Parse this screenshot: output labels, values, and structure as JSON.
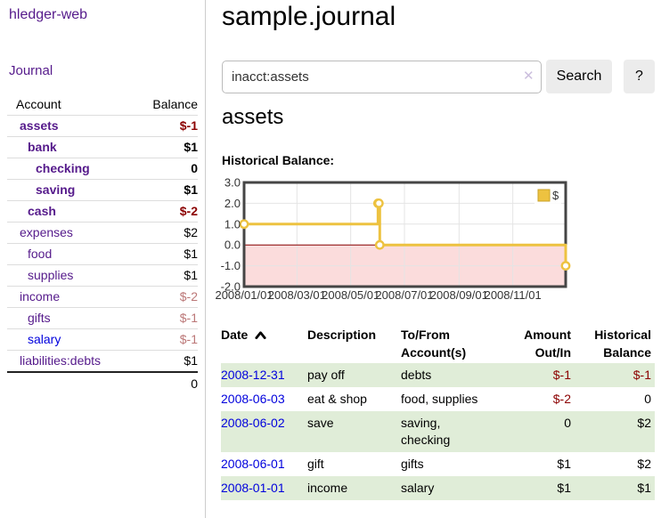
{
  "app": {
    "brand": "hledger-web"
  },
  "nav": {
    "journal": "Journal"
  },
  "sidebar": {
    "header": {
      "account": "Account",
      "balance": "Balance"
    },
    "accounts": [
      {
        "name": "assets",
        "indent": 1,
        "bold": true,
        "link_color": "purple",
        "balance": "$-1",
        "balance_style": "neg"
      },
      {
        "name": "bank",
        "indent": 2,
        "bold": true,
        "link_color": "purple",
        "balance": "$1",
        "balance_style": "pos"
      },
      {
        "name": "checking",
        "indent": 3,
        "bold": true,
        "link_color": "purple",
        "balance": "0",
        "balance_style": "pos"
      },
      {
        "name": "saving",
        "indent": 3,
        "bold": true,
        "link_color": "purple",
        "balance": "$1",
        "balance_style": "pos"
      },
      {
        "name": "cash",
        "indent": 2,
        "bold": true,
        "link_color": "purple",
        "balance": "$-2",
        "balance_style": "neg"
      },
      {
        "name": "expenses",
        "indent": 1,
        "bold": false,
        "link_color": "purple",
        "balance": "$2",
        "balance_style": "pos"
      },
      {
        "name": "food",
        "indent": 2,
        "bold": false,
        "link_color": "purple",
        "balance": "$1",
        "balance_style": "pos"
      },
      {
        "name": "supplies",
        "indent": 2,
        "bold": false,
        "link_color": "purple",
        "balance": "$1",
        "balance_style": "pos"
      },
      {
        "name": "income",
        "indent": 1,
        "bold": false,
        "link_color": "purple",
        "balance": "$-2",
        "balance_style": "rose"
      },
      {
        "name": "gifts",
        "indent": 2,
        "bold": false,
        "link_color": "purple",
        "balance": "$-1",
        "balance_style": "rose"
      },
      {
        "name": "salary",
        "indent": 2,
        "bold": false,
        "link_color": "blue",
        "balance": "$-1",
        "balance_style": "rose"
      },
      {
        "name": "liabilities:debts",
        "indent": 1,
        "bold": false,
        "link_color": "purple",
        "balance": "$1",
        "balance_style": "pos"
      }
    ],
    "total": "0"
  },
  "main": {
    "title": "sample.journal",
    "search": {
      "value": "inacct:assets",
      "clear_icon": "✕",
      "search_label": "Search",
      "help_label": "?"
    },
    "account_heading": "assets",
    "chart_heading": "Historical Balance:"
  },
  "chart_data": {
    "type": "line",
    "title": "Historical Balance",
    "step": true,
    "series": [
      {
        "name": "$",
        "color": "#edc240",
        "points": [
          [
            "2008-01-01",
            1
          ],
          [
            "2008-06-01",
            2
          ],
          [
            "2008-06-02",
            2
          ],
          [
            "2008-06-03",
            0
          ],
          [
            "2008-12-31",
            -1
          ]
        ]
      }
    ],
    "x_ticks": [
      "2008/01/01",
      "2008/03/01",
      "2008/05/01",
      "2008/07/01",
      "2008/09/01",
      "2008/11/01"
    ],
    "y_ticks": [
      "3.0",
      "2.0",
      "1.0",
      "0.0",
      "-1.0",
      "-2.0"
    ],
    "xlim": [
      "2008-01-01",
      "2008-12-31"
    ],
    "ylim": [
      -2,
      3
    ],
    "grid": true,
    "legend": {
      "label": "$",
      "position": "top-right"
    },
    "colors": {
      "line": "#edc240",
      "marker_fill": "#ffffff",
      "negative_region": "#fbdcdc",
      "zero_line": "#8b0000",
      "plot_border": "#454545",
      "gridline": "#e4e4e4"
    }
  },
  "register": {
    "headers": [
      {
        "lines": [
          "Date"
        ],
        "align": "left",
        "sorted": "asc"
      },
      {
        "lines": [
          "Description"
        ],
        "align": "left"
      },
      {
        "lines": [
          "To/From",
          "Account(s)"
        ],
        "align": "left"
      },
      {
        "lines": [
          "Amount",
          "Out/In"
        ],
        "align": "right"
      },
      {
        "lines": [
          "Historical",
          "Balance"
        ],
        "align": "right"
      }
    ],
    "rows": [
      {
        "date": "2008-12-31",
        "description": "pay off",
        "accounts": "debts",
        "amount": "$-1",
        "amount_neg": true,
        "balance": "$-1",
        "balance_neg": true
      },
      {
        "date": "2008-06-03",
        "description": "eat & shop",
        "accounts": "food, supplies",
        "amount": "$-2",
        "amount_neg": true,
        "balance": "0",
        "balance_neg": false
      },
      {
        "date": "2008-06-02",
        "description": "save",
        "accounts": "saving, checking",
        "amount": "0",
        "amount_neg": false,
        "balance": "$2",
        "balance_neg": false
      },
      {
        "date": "2008-06-01",
        "description": "gift",
        "accounts": "gifts",
        "amount": "$1",
        "amount_neg": false,
        "balance": "$2",
        "balance_neg": false
      },
      {
        "date": "2008-01-01",
        "description": "income",
        "accounts": "salary",
        "amount": "$1",
        "amount_neg": false,
        "balance": "$1",
        "balance_neg": false
      }
    ]
  },
  "colors": {
    "purple_link": "#551a8b",
    "blue_link": "#0000dd",
    "negative": "#8b0000",
    "soft_negative": "#bb7777",
    "row_stripe": "#e0edd8",
    "accent_gold": "#edc240"
  }
}
